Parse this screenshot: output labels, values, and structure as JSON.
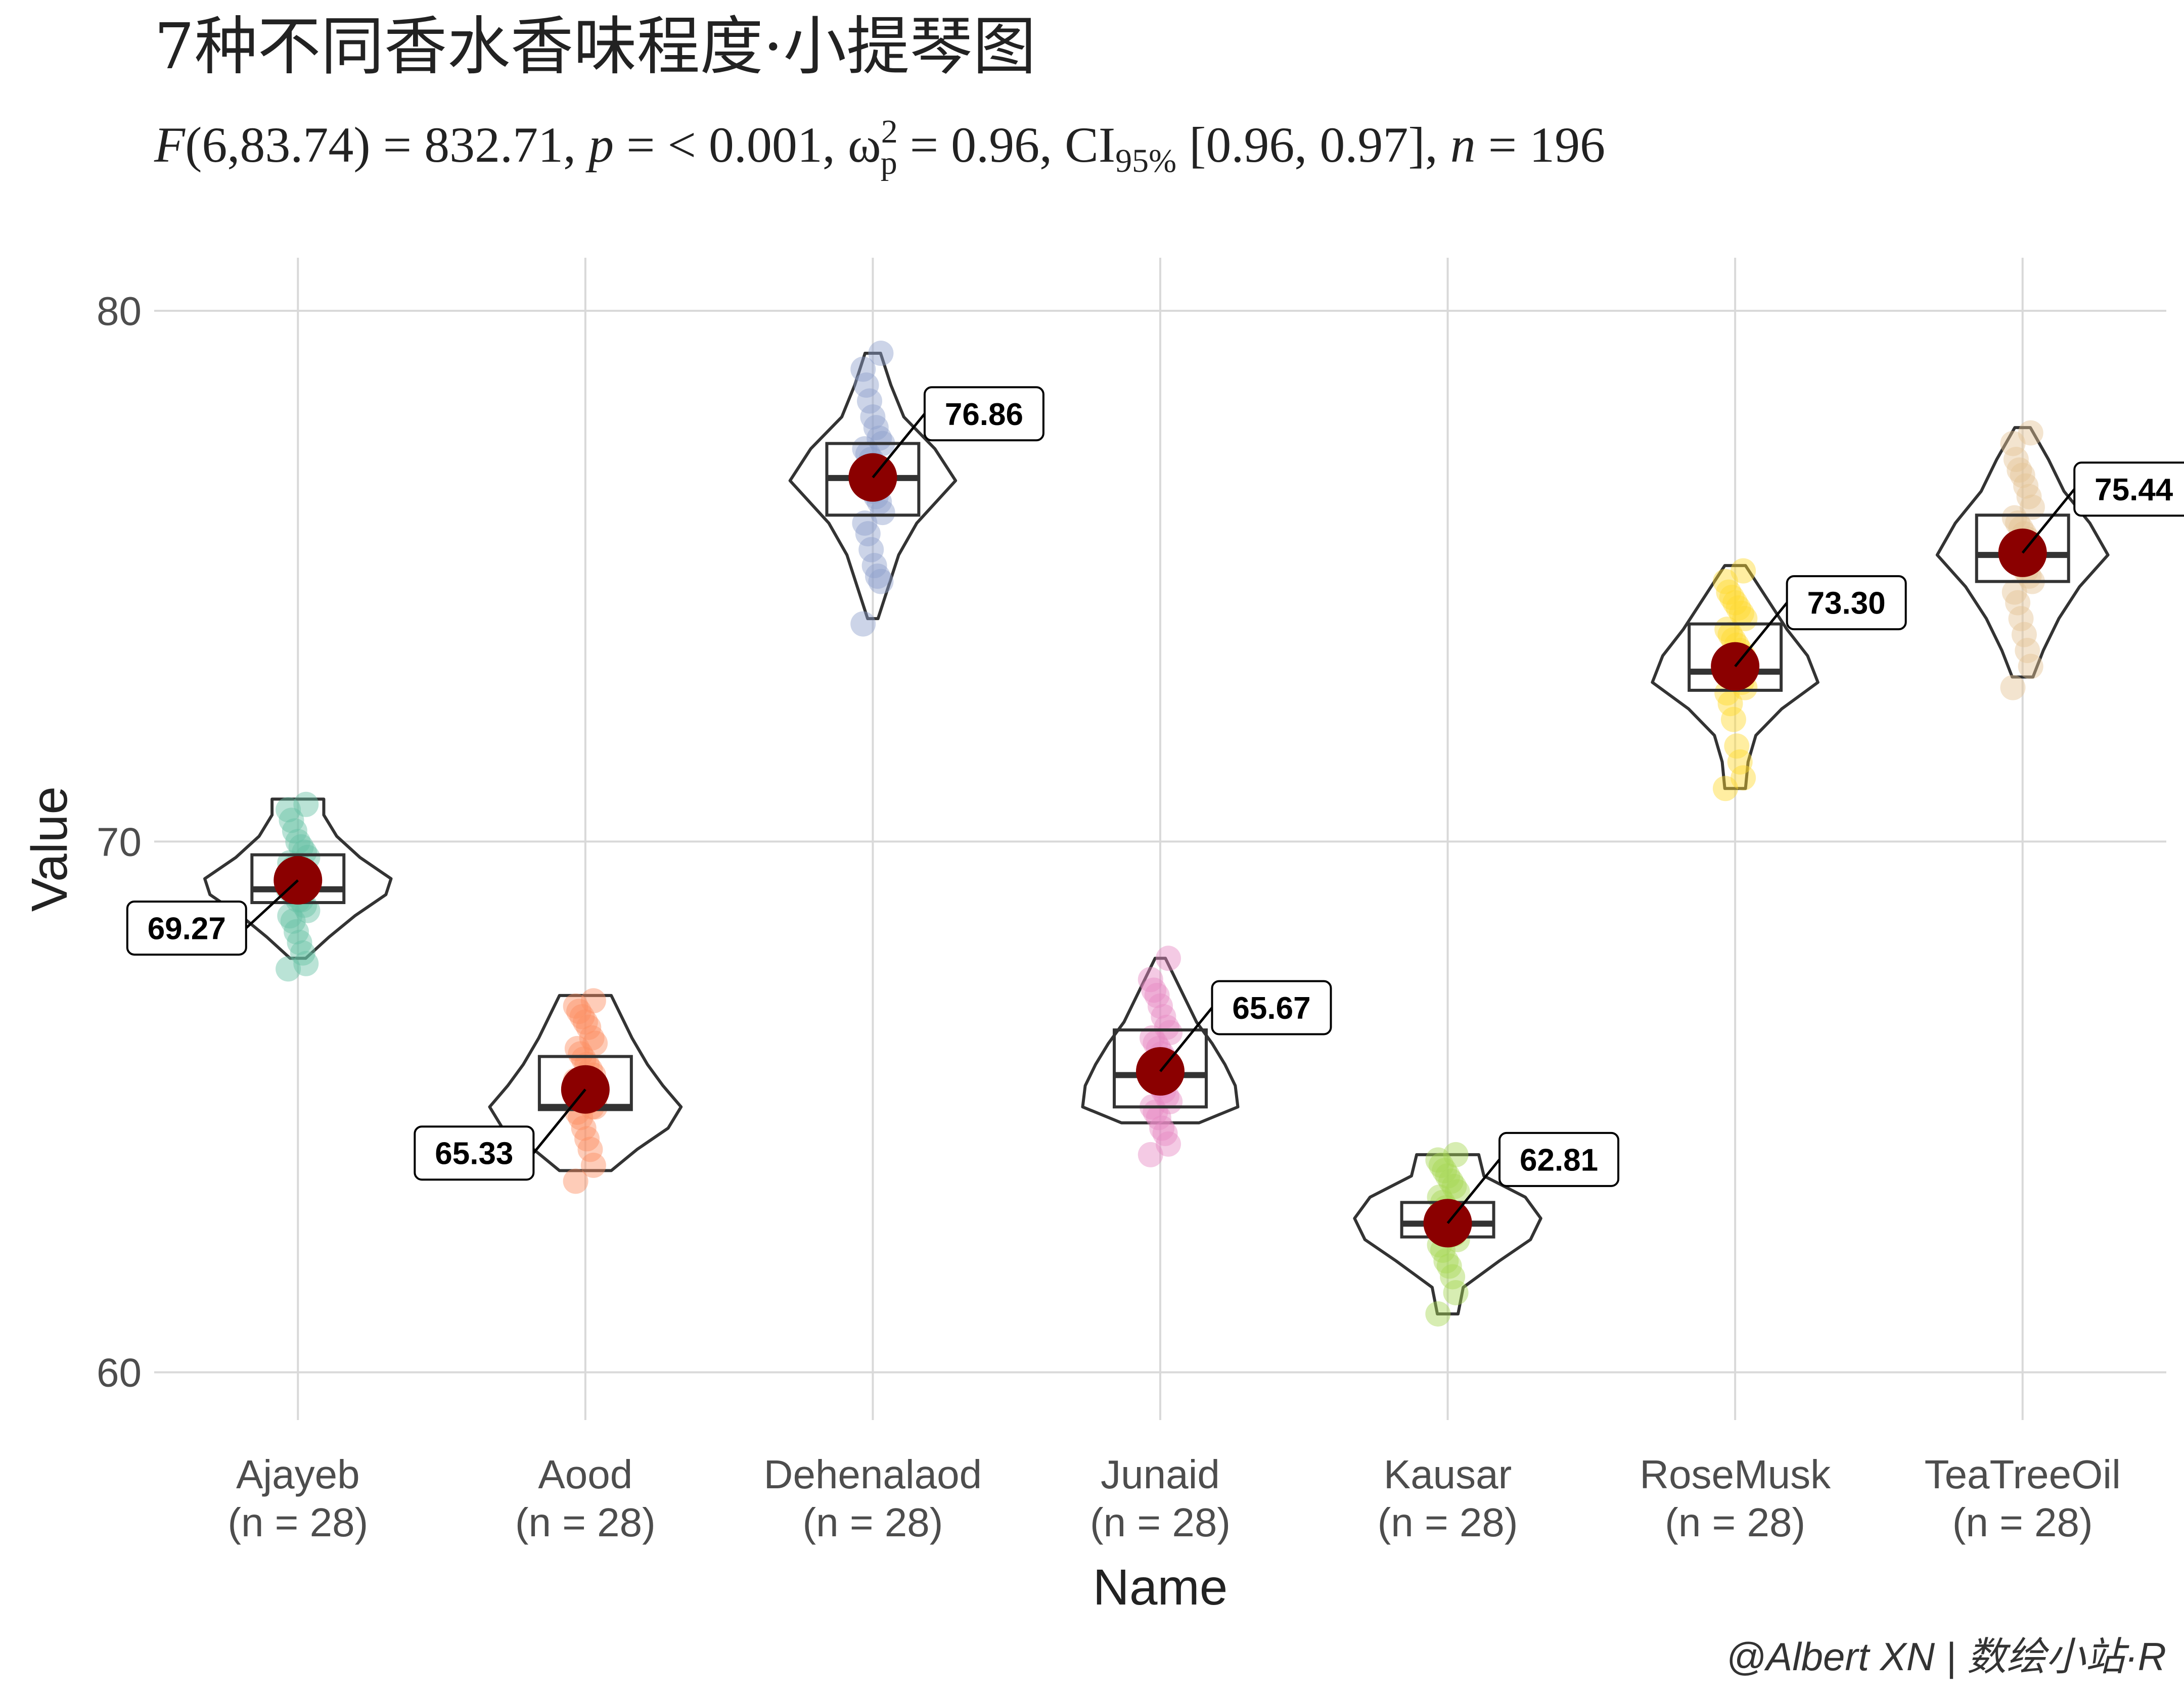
{
  "chart_data": {
    "type": "violin",
    "title": "7种不同香水香味程度·小提琴图",
    "subtitle": "F(6,83.74) = 832.71, p = < 0.001, ω²p = 0.96, CI95% [0.96, 0.97], n = 196",
    "subtitle_parts": {
      "f_label": "F",
      "f_args": "(6,83.74) = 832.71, ",
      "p_label": "p",
      "p_value": " = < 0.001, ",
      "omega": "ω",
      "omega_sup": "2",
      "omega_sub": "p",
      "omega_value": " = 0.96, CI",
      "ci_sub": "95%",
      "ci_value": " [0.96, 0.97], ",
      "n_label": "n",
      "n_value": " = 196"
    },
    "xlabel": "Name",
    "ylabel": "Value",
    "ylim": [
      59.1,
      81.0
    ],
    "yticks": [
      60,
      70,
      80
    ],
    "grid": true,
    "legend": "none",
    "caption": "@Albert XN | 数绘小站·R",
    "mean_color": "#8B0000",
    "groups": [
      {
        "name": "Ajayeb",
        "n_label": "(n = 28)",
        "color": "#66C2A5",
        "mean": 69.27,
        "mean_label": "69.27",
        "label_side": "left",
        "label_offset": -0.9,
        "box": {
          "q1": 68.85,
          "median": 69.1,
          "q3": 69.75
        },
        "violin_range": [
          67.8,
          70.8
        ],
        "violin_width": [
          [
            67.8,
            0.03
          ],
          [
            68.2,
            0.12
          ],
          [
            68.6,
            0.22
          ],
          [
            69.0,
            0.34
          ],
          [
            69.3,
            0.36
          ],
          [
            69.7,
            0.24
          ],
          [
            70.1,
            0.15
          ],
          [
            70.5,
            0.1
          ],
          [
            70.8,
            0.1
          ]
        ],
        "points": [
          67.6,
          67.7,
          67.9,
          68.1,
          68.3,
          68.5,
          68.6,
          68.7,
          68.8,
          68.9,
          68.9,
          69.0,
          69.1,
          69.1,
          69.2,
          69.3,
          69.3,
          69.4,
          69.5,
          69.6,
          69.7,
          69.8,
          69.9,
          70.0,
          70.2,
          70.4,
          70.6,
          70.7
        ]
      },
      {
        "name": "Aood",
        "n_label": "(n = 28)",
        "color": "#FC8D62",
        "mean": 65.33,
        "mean_label": "65.33",
        "label_side": "left",
        "label_offset": -1.2,
        "box": {
          "q1": 64.95,
          "median": 65.0,
          "q3": 65.95
        },
        "violin_range": [
          63.8,
          67.1
        ],
        "violin_width": [
          [
            63.8,
            0.1
          ],
          [
            64.2,
            0.2
          ],
          [
            64.6,
            0.32
          ],
          [
            65.0,
            0.37
          ],
          [
            65.4,
            0.3
          ],
          [
            65.8,
            0.24
          ],
          [
            66.3,
            0.18
          ],
          [
            66.7,
            0.14
          ],
          [
            67.1,
            0.1
          ]
        ],
        "points": [
          63.6,
          63.9,
          64.2,
          64.4,
          64.6,
          64.8,
          64.9,
          65.0,
          65.0,
          65.1,
          65.2,
          65.3,
          65.4,
          65.5,
          65.6,
          65.7,
          65.8,
          65.9,
          66.0,
          66.1,
          66.2,
          66.3,
          66.5,
          66.6,
          66.7,
          66.8,
          66.9,
          67.0
        ]
      },
      {
        "name": "Dehenalaod",
        "n_label": "(n = 28)",
        "color": "#8DA0CB",
        "mean": 76.86,
        "mean_label": "76.86",
        "label_side": "right",
        "label_offset": 1.2,
        "box": {
          "q1": 76.15,
          "median": 76.85,
          "q3": 77.5
        },
        "violin_range": [
          74.2,
          79.2
        ],
        "violin_width": [
          [
            74.2,
            0.02
          ],
          [
            74.8,
            0.06
          ],
          [
            75.4,
            0.1
          ],
          [
            76.0,
            0.17
          ],
          [
            76.8,
            0.32
          ],
          [
            77.4,
            0.24
          ],
          [
            78.0,
            0.12
          ],
          [
            78.6,
            0.07
          ],
          [
            79.2,
            0.03
          ]
        ],
        "points": [
          74.1,
          74.9,
          75.0,
          75.2,
          75.5,
          75.8,
          76.0,
          76.2,
          76.4,
          76.5,
          76.6,
          76.7,
          76.8,
          76.9,
          76.9,
          77.0,
          77.1,
          77.2,
          77.3,
          77.4,
          77.5,
          77.6,
          77.8,
          78.0,
          78.3,
          78.6,
          78.9,
          79.2
        ]
      },
      {
        "name": "Junaid",
        "n_label": "(n = 28)",
        "color": "#E78AC3",
        "mean": 65.67,
        "mean_label": "65.67",
        "label_side": "right",
        "label_offset": 1.2,
        "box": {
          "q1": 65.0,
          "median": 65.6,
          "q3": 66.45
        },
        "violin_range": [
          64.7,
          67.8
        ],
        "violin_width": [
          [
            64.7,
            0.15
          ],
          [
            65.0,
            0.3
          ],
          [
            65.4,
            0.29
          ],
          [
            65.8,
            0.25
          ],
          [
            66.2,
            0.2
          ],
          [
            66.6,
            0.14
          ],
          [
            67.0,
            0.1
          ],
          [
            67.4,
            0.06
          ],
          [
            67.8,
            0.02
          ]
        ],
        "points": [
          64.1,
          64.3,
          64.5,
          64.6,
          64.8,
          64.9,
          65.0,
          65.1,
          65.2,
          65.3,
          65.4,
          65.5,
          65.6,
          65.7,
          65.8,
          65.9,
          66.0,
          66.1,
          66.2,
          66.3,
          66.4,
          66.5,
          66.7,
          66.9,
          67.1,
          67.2,
          67.4,
          67.8
        ]
      },
      {
        "name": "Kausar",
        "n_label": "(n = 28)",
        "color": "#A6D854",
        "mean": 62.81,
        "mean_label": "62.81",
        "label_side": "right",
        "label_offset": 1.2,
        "box": {
          "q1": 62.55,
          "median": 62.8,
          "q3": 63.2
        },
        "violin_range": [
          61.1,
          64.1
        ],
        "violin_width": [
          [
            61.1,
            0.04
          ],
          [
            61.6,
            0.06
          ],
          [
            62.1,
            0.2
          ],
          [
            62.5,
            0.32
          ],
          [
            62.9,
            0.36
          ],
          [
            63.3,
            0.3
          ],
          [
            63.7,
            0.14
          ],
          [
            64.1,
            0.12
          ]
        ],
        "points": [
          61.1,
          61.5,
          61.8,
          62.0,
          62.1,
          62.3,
          62.4,
          62.5,
          62.6,
          62.6,
          62.7,
          62.8,
          62.8,
          62.9,
          62.9,
          63.0,
          63.0,
          63.1,
          63.2,
          63.3,
          63.4,
          63.5,
          63.6,
          63.7,
          63.8,
          63.9,
          64.0,
          64.1
        ]
      },
      {
        "name": "RoseMusk",
        "n_label": "(n = 28)",
        "color": "#FFD92F",
        "mean": 73.3,
        "mean_label": "73.30",
        "label_side": "right",
        "label_offset": 1.2,
        "box": {
          "q1": 72.85,
          "median": 73.2,
          "q3": 74.1
        },
        "violin_range": [
          71.0,
          75.2
        ],
        "violin_width": [
          [
            71.0,
            0.04
          ],
          [
            71.5,
            0.05
          ],
          [
            72.0,
            0.08
          ],
          [
            72.5,
            0.18
          ],
          [
            73.0,
            0.32
          ],
          [
            73.5,
            0.28
          ],
          [
            74.0,
            0.2
          ],
          [
            74.6,
            0.12
          ],
          [
            75.2,
            0.04
          ]
        ],
        "points": [
          71.0,
          71.2,
          71.5,
          71.8,
          72.3,
          72.6,
          72.8,
          72.9,
          73.0,
          73.1,
          73.2,
          73.2,
          73.3,
          73.4,
          73.5,
          73.6,
          73.7,
          73.8,
          73.9,
          74.0,
          74.2,
          74.3,
          74.4,
          74.5,
          74.6,
          74.7,
          74.9,
          75.1
        ]
      },
      {
        "name": "TeaTreeOil",
        "n_label": "(n = 28)",
        "color": "#E5C494",
        "mean": 75.44,
        "mean_label": "75.44",
        "label_side": "right",
        "label_offset": 1.2,
        "box": {
          "q1": 74.9,
          "median": 75.4,
          "q3": 76.15
        },
        "violin_range": [
          73.1,
          77.8
        ],
        "violin_width": [
          [
            73.1,
            0.04
          ],
          [
            73.6,
            0.08
          ],
          [
            74.2,
            0.14
          ],
          [
            74.8,
            0.22
          ],
          [
            75.4,
            0.33
          ],
          [
            76.0,
            0.26
          ],
          [
            76.6,
            0.16
          ],
          [
            77.2,
            0.1
          ],
          [
            77.8,
            0.03
          ]
        ],
        "points": [
          72.9,
          73.3,
          73.6,
          73.9,
          74.2,
          74.5,
          74.7,
          74.9,
          75.0,
          75.1,
          75.2,
          75.3,
          75.4,
          75.5,
          75.6,
          75.7,
          75.8,
          75.9,
          76.0,
          76.1,
          76.3,
          76.5,
          76.7,
          76.9,
          77.0,
          77.2,
          77.5,
          77.7
        ]
      }
    ]
  }
}
